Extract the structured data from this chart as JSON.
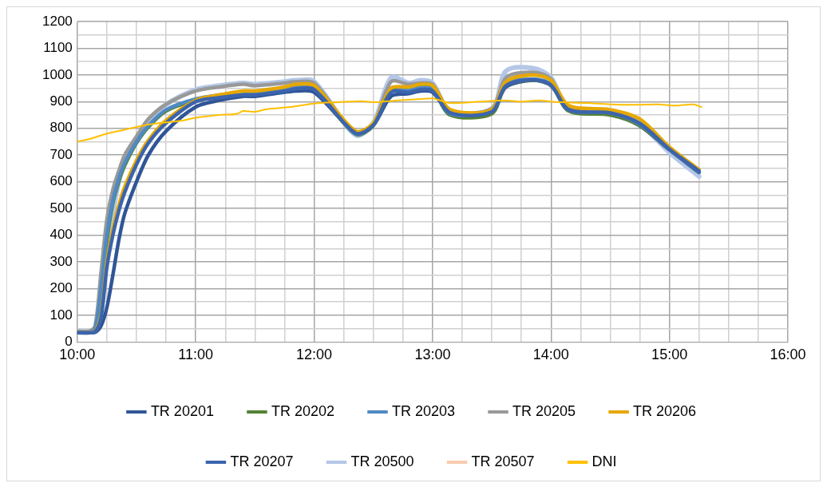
{
  "chart_data": {
    "type": "line",
    "x": [
      10.0,
      10.1,
      10.15,
      10.2,
      10.25,
      10.3,
      10.35,
      10.4,
      10.5,
      10.6,
      10.75,
      11.0,
      11.2,
      11.4,
      11.5,
      11.75,
      11.85,
      12.0,
      12.35,
      12.5,
      12.65,
      12.8,
      12.9,
      13.0,
      13.15,
      13.5,
      13.62,
      13.85,
      14.0,
      14.15,
      14.5,
      14.75,
      15.0,
      15.25
    ],
    "series": [
      {
        "name": "TR 20201",
        "color": "#2f5597",
        "values": [
          35,
          35,
          36,
          60,
          130,
          250,
          380,
          480,
          600,
          700,
          790,
          880,
          905,
          920,
          920,
          935,
          940,
          935,
          785,
          812,
          920,
          930,
          940,
          935,
          860,
          865,
          955,
          980,
          960,
          870,
          855,
          810,
          720,
          635
        ]
      },
      {
        "name": "TR 20202",
        "color": "#548235",
        "values": [
          35,
          35,
          45,
          180,
          380,
          520,
          600,
          660,
          745,
          805,
          865,
          905,
          920,
          930,
          930,
          945,
          950,
          948,
          778,
          810,
          945,
          940,
          950,
          945,
          850,
          855,
          960,
          980,
          962,
          865,
          850,
          810,
          722,
          640
        ]
      },
      {
        "name": "TR 20203",
        "color": "#4e8ac4",
        "values": [
          35,
          35,
          50,
          200,
          400,
          530,
          610,
          670,
          750,
          810,
          870,
          910,
          925,
          935,
          935,
          950,
          955,
          955,
          780,
          815,
          950,
          945,
          955,
          950,
          855,
          868,
          965,
          985,
          965,
          870,
          858,
          815,
          722,
          638
        ]
      },
      {
        "name": "TR 20205",
        "color": "#999999",
        "values": [
          40,
          40,
          60,
          260,
          460,
          570,
          640,
          700,
          770,
          835,
          890,
          940,
          955,
          965,
          960,
          970,
          975,
          970,
          780,
          815,
          975,
          965,
          970,
          965,
          865,
          875,
          990,
          1010,
          985,
          870,
          865,
          820,
          720,
          635
        ]
      },
      {
        "name": "TR 20206",
        "color": "#e6a800",
        "values": [
          35,
          35,
          40,
          100,
          300,
          420,
          510,
          580,
          680,
          755,
          830,
          905,
          925,
          940,
          940,
          955,
          965,
          960,
          790,
          820,
          950,
          955,
          965,
          960,
          870,
          870,
          975,
          1000,
          980,
          885,
          870,
          835,
          730,
          645
        ]
      },
      {
        "name": "TR 20207",
        "color": "#3c64ad",
        "values": [
          35,
          35,
          38,
          90,
          280,
          400,
          490,
          560,
          665,
          745,
          820,
          900,
          915,
          925,
          925,
          940,
          948,
          945,
          782,
          812,
          935,
          935,
          945,
          940,
          858,
          862,
          960,
          982,
          962,
          870,
          858,
          818,
          722,
          640
        ]
      },
      {
        "name": "TR 20500",
        "color": "#b4c7e7",
        "values": [
          40,
          40,
          45,
          150,
          330,
          480,
          600,
          680,
          760,
          830,
          890,
          945,
          960,
          970,
          965,
          975,
          980,
          975,
          775,
          820,
          990,
          970,
          980,
          970,
          860,
          870,
          1015,
          1025,
          990,
          870,
          860,
          815,
          710,
          620
        ]
      },
      {
        "name": "TR 20507",
        "color": "#f8cbad",
        "values": [
          null,
          null,
          null,
          null,
          null,
          null,
          null,
          null,
          null,
          null,
          null,
          null,
          null,
          null,
          null,
          null,
          null,
          null,
          null,
          null,
          null,
          null,
          null,
          null,
          null,
          null,
          null,
          null,
          null,
          null,
          null,
          null,
          null,
          null
        ]
      },
      {
        "name": "DNI",
        "color": "#ffc000",
        "x": [
          10.0,
          10.1,
          10.25,
          10.4,
          10.55,
          10.7,
          10.9,
          11.0,
          11.2,
          11.35,
          11.4,
          11.5,
          11.6,
          11.8,
          12.0,
          12.2,
          12.4,
          12.5,
          12.7,
          12.9,
          13.0,
          13.15,
          13.4,
          13.6,
          13.75,
          13.9,
          14.0,
          14.1,
          14.3,
          14.5,
          14.7,
          14.9,
          15.05,
          15.2,
          15.27
        ],
        "values": [
          750,
          760,
          780,
          795,
          810,
          820,
          830,
          840,
          850,
          855,
          865,
          862,
          872,
          880,
          893,
          898,
          902,
          898,
          905,
          910,
          912,
          895,
          900,
          905,
          900,
          905,
          900,
          898,
          895,
          890,
          888,
          890,
          885,
          890,
          880
        ]
      }
    ],
    "xlim": [
      10,
      16
    ],
    "xticks": [
      {
        "value": 10,
        "label": "10:00"
      },
      {
        "value": 10.25,
        "label": null
      },
      {
        "value": 10.5,
        "label": null
      },
      {
        "value": 10.75,
        "label": null
      },
      {
        "value": 11,
        "label": "11:00"
      },
      {
        "value": 11.25,
        "label": null
      },
      {
        "value": 11.5,
        "label": null
      },
      {
        "value": 11.75,
        "label": null
      },
      {
        "value": 12,
        "label": "12:00"
      },
      {
        "value": 12.25,
        "label": null
      },
      {
        "value": 12.5,
        "label": null
      },
      {
        "value": 12.75,
        "label": null
      },
      {
        "value": 13,
        "label": "13:00"
      },
      {
        "value": 13.25,
        "label": null
      },
      {
        "value": 13.5,
        "label": null
      },
      {
        "value": 13.75,
        "label": null
      },
      {
        "value": 14,
        "label": "14:00"
      },
      {
        "value": 14.25,
        "label": null
      },
      {
        "value": 14.5,
        "label": null
      },
      {
        "value": 14.75,
        "label": null
      },
      {
        "value": 15,
        "label": "15:00"
      },
      {
        "value": 15.25,
        "label": null
      },
      {
        "value": 15.5,
        "label": null
      },
      {
        "value": 15.75,
        "label": null
      },
      {
        "value": 16,
        "label": "16:00"
      }
    ],
    "ylim": [
      0,
      1200
    ],
    "yticks": [
      0,
      {
        "value": 50,
        "label": null
      },
      100,
      {
        "value": 150,
        "label": null
      },
      200,
      {
        "value": 250,
        "label": null
      },
      300,
      {
        "value": 350,
        "label": null
      },
      400,
      {
        "value": 450,
        "label": null
      },
      500,
      {
        "value": 550,
        "label": null
      },
      600,
      {
        "value": 650,
        "label": null
      },
      700,
      {
        "value": 750,
        "label": null
      },
      800,
      {
        "value": 850,
        "label": null
      },
      900,
      {
        "value": 950,
        "label": null
      },
      1000,
      {
        "value": 1050,
        "label": null
      },
      1100,
      {
        "value": 1150,
        "label": null
      },
      1200
    ],
    "grid": true,
    "legend": "bottom",
    "marker": "none",
    "line_style": "solid"
  }
}
